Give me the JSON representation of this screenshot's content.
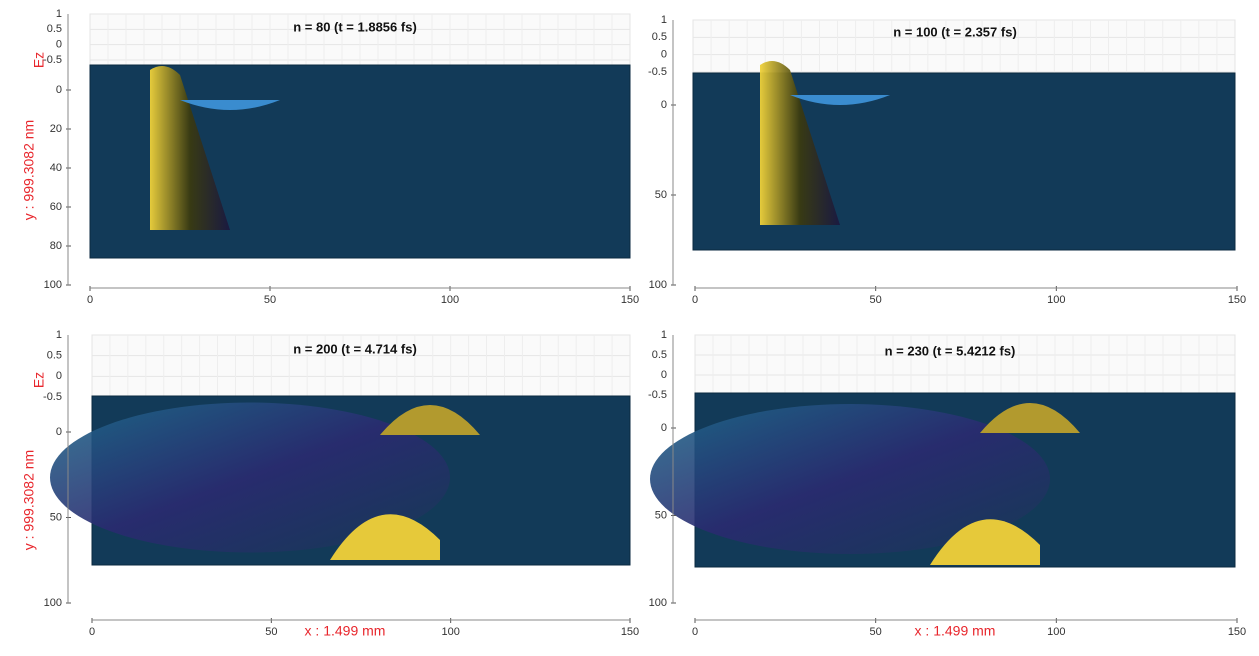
{
  "chart_data": [
    {
      "type": "surface",
      "title": "n = 80 (t = 1.8856 fs)",
      "zlabel": "Ez",
      "ylabel": "y : 999.3082 nm",
      "xlim": [
        0,
        150
      ],
      "xticks": [
        0,
        50,
        100,
        150
      ],
      "ylim": [
        0,
        100
      ],
      "yticks": [
        0,
        20,
        40,
        60,
        80,
        100
      ],
      "zlim": [
        -0.5,
        1
      ],
      "zticks": [
        1,
        0.5,
        0,
        -0.5
      ]
    },
    {
      "type": "surface",
      "title": "n = 100 (t = 2.357 fs)",
      "xlim": [
        0,
        150
      ],
      "xticks": [
        0,
        50,
        100,
        150
      ],
      "ylim": [
        0,
        100
      ],
      "yticks": [
        0,
        50,
        100
      ],
      "zlim": [
        -0.5,
        1
      ],
      "zticks": [
        1,
        0.5,
        0,
        -0.5
      ]
    },
    {
      "type": "surface",
      "title": "n = 200 (t = 4.714 fs)",
      "zlabel": "Ez",
      "ylabel": "y : 999.3082 nm",
      "xlabel": "x : 1.499 mm",
      "xlim": [
        0,
        150
      ],
      "xticks": [
        0,
        50,
        100,
        150
      ],
      "ylim": [
        0,
        100
      ],
      "yticks": [
        0,
        50,
        100
      ],
      "zlim": [
        -0.5,
        1
      ],
      "zticks": [
        1,
        0.5,
        0,
        -0.5
      ]
    },
    {
      "type": "surface",
      "title": "n = 230 (t = 5.4212 fs)",
      "xlabel": "x : 1.499 mm",
      "xlim": [
        0,
        150
      ],
      "xticks": [
        0,
        50,
        100,
        150
      ],
      "ylim": [
        0,
        100
      ],
      "yticks": [
        0,
        50,
        100
      ],
      "zlim": [
        -0.5,
        1
      ],
      "zticks": [
        1,
        0.5,
        0,
        -0.5
      ]
    }
  ]
}
